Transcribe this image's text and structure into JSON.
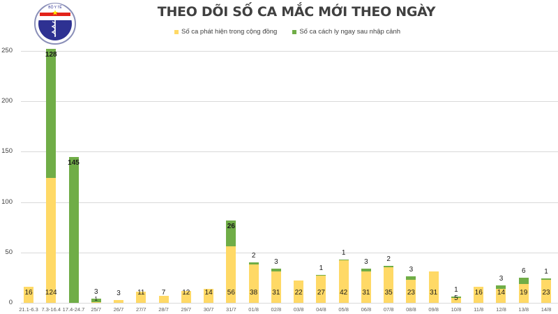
{
  "header": {
    "title": "THEO DÕI SỐ CA MẮC MỚI THEO NGÀY",
    "logo": {
      "icon": "ministry-of-health-emblem",
      "top_text": "BỘ Y TẾ",
      "bottom_text": "MINISTRY OF HEALTH"
    }
  },
  "colors": {
    "community": "#ffd966",
    "imported": "#70ad47",
    "grid": "#d9d9d9",
    "text": "#404040"
  },
  "chart_data": {
    "type": "bar",
    "stacked": true,
    "title": "THEO DÕI SỐ CA MẮC MỚI THEO NGÀY",
    "xlabel": "",
    "ylabel": "",
    "ylim": [
      0,
      250
    ],
    "yticks": [
      0,
      50,
      100,
      150,
      200,
      250
    ],
    "grid": true,
    "legend_position": "top",
    "categories": [
      "21.1-6.3",
      "7.3-16.4",
      "17.4-24.7",
      "25/7",
      "26/7",
      "27/7",
      "28/7",
      "29/7",
      "30/7",
      "31/7",
      "01/8",
      "02/8",
      "03/8",
      "04/8",
      "05/8",
      "06/8",
      "07/8",
      "08/8",
      "09/8",
      "10/8",
      "11/8",
      "12/8",
      "13/8",
      "14/8"
    ],
    "series": [
      {
        "name": "Số ca phát hiện trong cộng đồng",
        "color": "#ffd966",
        "values": [
          16,
          124,
          0,
          1,
          3,
          11,
          7,
          12,
          14,
          56,
          38,
          31,
          22,
          27,
          42,
          31,
          35,
          23,
          31,
          5,
          16,
          14,
          19,
          23
        ]
      },
      {
        "name": "Số ca cách ly ngay sau nhập cảnh",
        "color": "#70ad47",
        "values": [
          0,
          128,
          145,
          3,
          0,
          0,
          0,
          0,
          0,
          26,
          2,
          3,
          0,
          1,
          1,
          3,
          2,
          3,
          0,
          1,
          0,
          3,
          6,
          1
        ]
      }
    ]
  },
  "legend": [
    {
      "label": "Số ca phát hiện trong cộng đồng",
      "color": "#ffd966"
    },
    {
      "label": "Số ca cách ly ngay sau nhập cảnh",
      "color": "#70ad47"
    }
  ]
}
